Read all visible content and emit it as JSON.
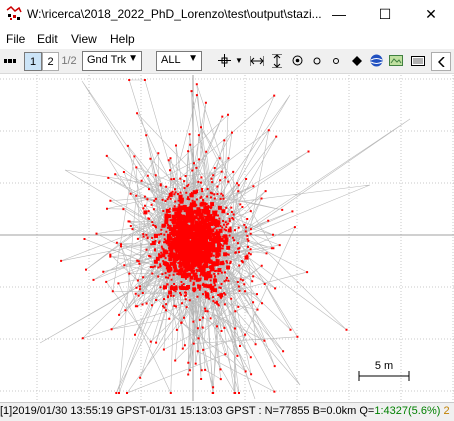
{
  "window": {
    "title": "W:\\ricerca\\2018_2022_PhD_Lorenzo\\test\\output\\stazi...",
    "minimize_glyph": "—",
    "maximize_glyph": "☐",
    "close_glyph": "✕"
  },
  "menu": [
    "File",
    "Edit",
    "View",
    "Help"
  ],
  "toolbar": {
    "view1_label": "1",
    "view2_label": "2",
    "view12_label": "1/2",
    "plot_type": "Gnd Trk",
    "sat_filter": "ALL"
  },
  "plot": {
    "scale_label": "5 m",
    "colors": {
      "points": "#ff0000",
      "lines": "#b4b4b4",
      "grid": "#c8c8c8",
      "axes": "#a0a0a0"
    }
  },
  "status": {
    "left": "[1]2019/01/30 13:55:19 GPST-01/31 15:13:03 GPST : N=77855 B=0.0km Q=",
    "quality": "1:4327(5.6%)",
    "right": "2"
  }
}
